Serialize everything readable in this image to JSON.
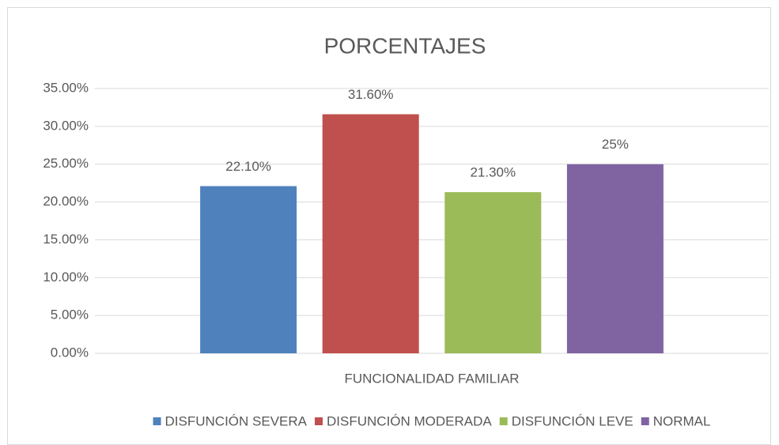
{
  "chart_data": {
    "type": "bar",
    "title": "PORCENTAJES",
    "categories": [
      "FUNCIONALIDAD FAMILIAR"
    ],
    "series": [
      {
        "name": "DISFUNCIÓN SEVERA",
        "color": "#4f81bd",
        "values": [
          22.1
        ],
        "value_labels": [
          "22.10%"
        ]
      },
      {
        "name": "DISFUNCIÓN MODERADA",
        "color": "#c0504d",
        "values": [
          31.6
        ],
        "value_labels": [
          "31.60%"
        ]
      },
      {
        "name": "DISFUNCIÓN LEVE",
        "color": "#9bbb59",
        "values": [
          21.3
        ],
        "value_labels": [
          "21.30%"
        ]
      },
      {
        "name": "NORMAL",
        "color": "#8064a2",
        "values": [
          25
        ],
        "value_labels": [
          "25%"
        ]
      }
    ],
    "ylim": [
      0,
      35
    ],
    "yticks": [
      {
        "value": 0,
        "label": "0.00%"
      },
      {
        "value": 5,
        "label": "5.00%"
      },
      {
        "value": 10,
        "label": "10.00%"
      },
      {
        "value": 15,
        "label": "15.00%"
      },
      {
        "value": 20,
        "label": "20.00%"
      },
      {
        "value": 25,
        "label": "25.00%"
      },
      {
        "value": 30,
        "label": "30.00%"
      },
      {
        "value": 35,
        "label": "35.00%"
      }
    ],
    "grid": true,
    "legend": "bottom"
  }
}
